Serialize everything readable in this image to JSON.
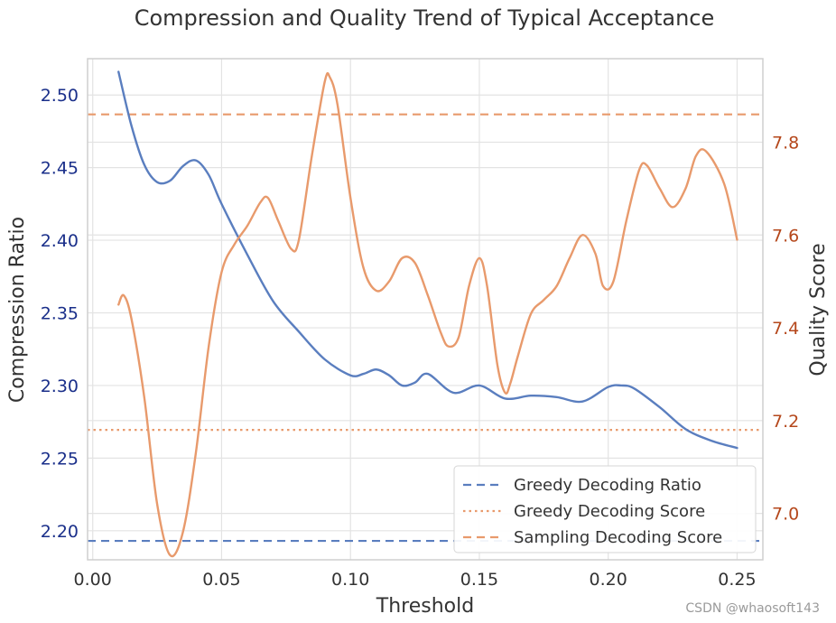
{
  "chart_data": {
    "type": "line",
    "title": "Compression and Quality Trend of Typical Acceptance",
    "xlabel": "Threshold",
    "ylabel_left": "Compression Ratio",
    "ylabel_right": "Quality Score",
    "xlim": [
      -0.002,
      0.26
    ],
    "ylim_left": [
      2.18,
      2.525
    ],
    "ylim_right": [
      6.9,
      7.98
    ],
    "x_ticks": [
      "0.00",
      "0.05",
      "0.10",
      "0.15",
      "0.20",
      "0.25"
    ],
    "y_ticks_left": [
      "2.20",
      "2.25",
      "2.30",
      "2.35",
      "2.40",
      "2.45",
      "2.50"
    ],
    "y_ticks_right": [
      "7.0",
      "7.2",
      "7.4",
      "7.6",
      "7.8"
    ],
    "grid": true,
    "legend_position": "bottom-right",
    "colors": {
      "ratio": "#5a7ebf",
      "score": "#e89a6c",
      "left_ticks": "#1a2f8a",
      "right_ticks": "#b5471b"
    },
    "series": [
      {
        "name": "Compression Ratio",
        "axis": "left",
        "x": [
          0.01,
          0.015,
          0.02,
          0.025,
          0.03,
          0.035,
          0.04,
          0.045,
          0.05,
          0.06,
          0.07,
          0.08,
          0.09,
          0.1,
          0.105,
          0.11,
          0.115,
          0.12,
          0.125,
          0.13,
          0.14,
          0.15,
          0.16,
          0.17,
          0.18,
          0.19,
          0.2,
          0.205,
          0.21,
          0.22,
          0.23,
          0.24,
          0.25
        ],
        "y": [
          2.516,
          2.479,
          2.452,
          2.44,
          2.441,
          2.451,
          2.455,
          2.445,
          2.425,
          2.39,
          2.358,
          2.337,
          2.318,
          2.307,
          2.308,
          2.311,
          2.307,
          2.3,
          2.302,
          2.308,
          2.295,
          2.3,
          2.291,
          2.293,
          2.292,
          2.289,
          2.299,
          2.3,
          2.298,
          2.285,
          2.27,
          2.262,
          2.257
        ]
      },
      {
        "name": "Quality Score",
        "axis": "right",
        "x": [
          0.01,
          0.012,
          0.015,
          0.02,
          0.025,
          0.03,
          0.035,
          0.04,
          0.045,
          0.05,
          0.055,
          0.06,
          0.065,
          0.068,
          0.072,
          0.077,
          0.08,
          0.085,
          0.09,
          0.092,
          0.095,
          0.1,
          0.105,
          0.11,
          0.115,
          0.12,
          0.125,
          0.13,
          0.135,
          0.138,
          0.142,
          0.146,
          0.15,
          0.153,
          0.157,
          0.16,
          0.162,
          0.165,
          0.17,
          0.175,
          0.18,
          0.185,
          0.19,
          0.195,
          0.198,
          0.202,
          0.207,
          0.212,
          0.215,
          0.22,
          0.225,
          0.23,
          0.234,
          0.238,
          0.245,
          0.25
        ],
        "y": [
          7.45,
          7.47,
          7.42,
          7.25,
          7.02,
          6.91,
          6.96,
          7.13,
          7.36,
          7.52,
          7.58,
          7.62,
          7.67,
          7.68,
          7.63,
          7.57,
          7.59,
          7.77,
          7.93,
          7.94,
          7.88,
          7.68,
          7.53,
          7.48,
          7.5,
          7.55,
          7.54,
          7.47,
          7.39,
          7.36,
          7.38,
          7.49,
          7.55,
          7.49,
          7.32,
          7.26,
          7.28,
          7.34,
          7.43,
          7.46,
          7.49,
          7.55,
          7.6,
          7.56,
          7.49,
          7.5,
          7.63,
          7.74,
          7.75,
          7.7,
          7.66,
          7.7,
          7.77,
          7.78,
          7.71,
          7.59
        ]
      }
    ],
    "reference_lines": [
      {
        "name": "Greedy Decoding Ratio",
        "axis": "left",
        "y": 2.193,
        "style": "dashed",
        "color": "#5a7ebf"
      },
      {
        "name": "Greedy Decoding Score",
        "axis": "right",
        "y": 7.18,
        "style": "dotted",
        "color": "#e89a6c"
      },
      {
        "name": "Sampling Decoding Score",
        "axis": "right",
        "y": 7.86,
        "style": "dashed",
        "color": "#e89a6c"
      }
    ]
  },
  "watermark": "CSDN @whaosoft143"
}
